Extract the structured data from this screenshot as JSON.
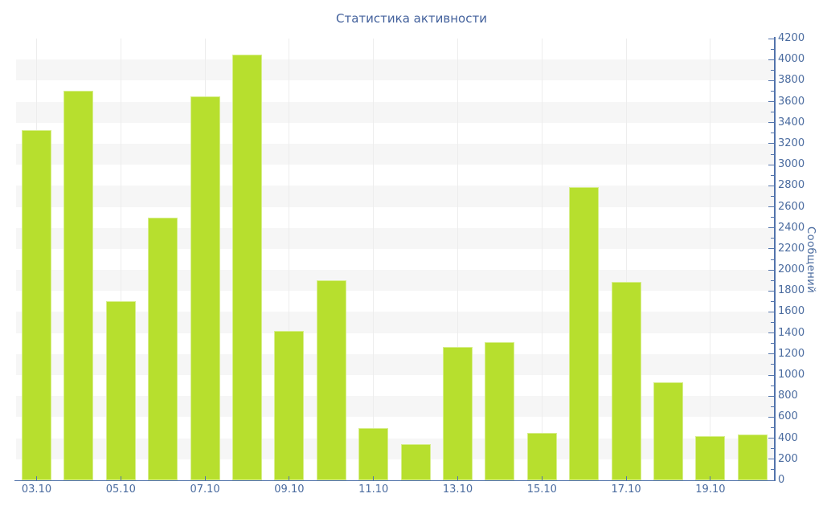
{
  "title": "Статистика активности",
  "chart_data": {
    "type": "bar",
    "title": "Статистика активности",
    "xlabel": "",
    "ylabel": "Сообщений",
    "categories": [
      "03.10",
      "04.10",
      "05.10",
      "06.10",
      "07.10",
      "08.10",
      "09.10",
      "10.10",
      "11.10",
      "12.10",
      "13.10",
      "14.10",
      "15.10",
      "16.10",
      "17.10",
      "18.10",
      "19.10",
      "20.10"
    ],
    "values": [
      3330,
      3700,
      1700,
      2500,
      3650,
      4050,
      1420,
      1900,
      500,
      345,
      1270,
      1310,
      450,
      2790,
      1890,
      935,
      420,
      435
    ],
    "x_tick_labels": [
      "03.10",
      "05.10",
      "07.10",
      "09.10",
      "11.10",
      "13.10",
      "15.10",
      "17.10",
      "19.10"
    ],
    "y_tick_labels": [
      "0",
      "200",
      "400",
      "600",
      "800",
      "1000",
      "1200",
      "1400",
      "1600",
      "1800",
      "2000",
      "2200",
      "2400",
      "2600",
      "2800",
      "3000",
      "3200",
      "3400",
      "3600",
      "3800",
      "4000",
      "4200"
    ],
    "ylim": [
      0,
      4200
    ],
    "y_tick_step": 200,
    "y_minor_tick_step": 100,
    "y_axis_side": "right",
    "legend": "none",
    "grid": "alternating-horizontal-bands"
  },
  "colors": {
    "bar_fill": "#b7df2e",
    "bar_border": "#d7ee8e",
    "axis_line": "#5273ab",
    "label_text": "#4a6b9f",
    "title_text": "#43619c",
    "row_band": "#f6f6f6",
    "vertical_gridline": "#ededed",
    "background": "#ffffff"
  }
}
